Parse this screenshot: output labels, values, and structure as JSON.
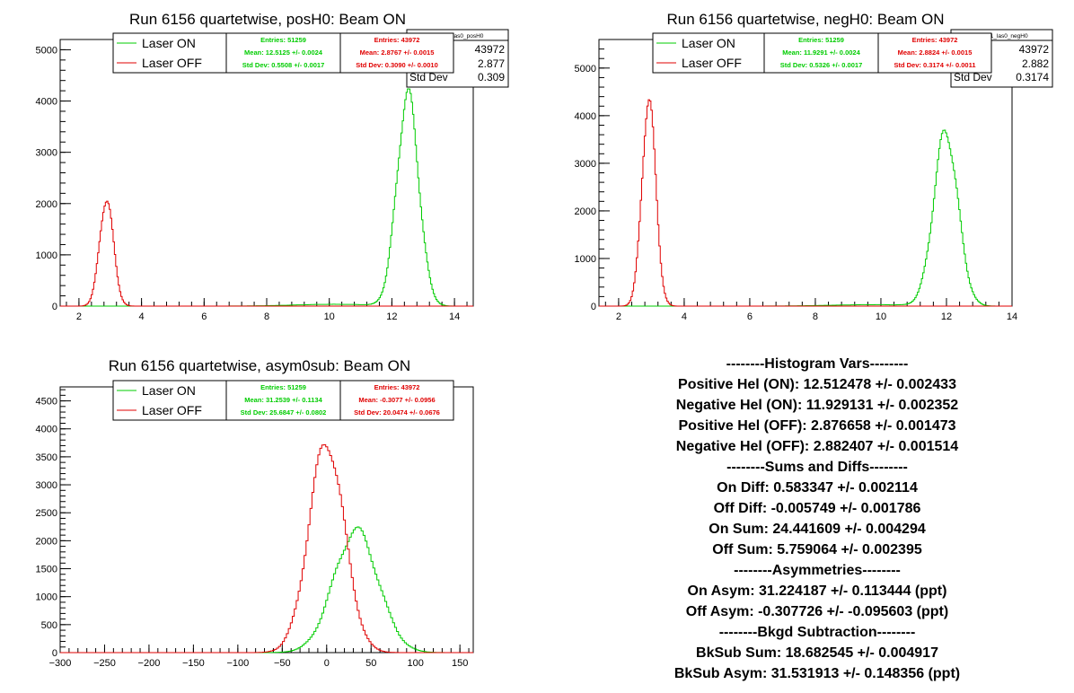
{
  "chart_data": [
    {
      "type": "histogram",
      "title": "Run 6156 quartetwise, posH0: Beam ON",
      "xlim": [
        1.4,
        14.6
      ],
      "ylim": [
        0,
        5200
      ],
      "xticks": [
        2,
        4,
        6,
        8,
        10,
        12,
        14
      ],
      "yticks": [
        0,
        1000,
        2000,
        3000,
        4000,
        5000
      ],
      "stats_box": {
        "name": "beam1_las0_posH0",
        "entries": "43972",
        "mean": "2.877",
        "std_dev": "0.309",
        "std_dev_label": "Std Dev"
      },
      "series": [
        {
          "name": "Laser ON",
          "color": "#00cc00",
          "mean": 12.51,
          "std": 0.35,
          "peak": 4120,
          "tail_amp": 35,
          "tail_mean": 10.2,
          "tail_std": 1.3,
          "entries": "Entries: 51259",
          "mean_text": "Mean: 12.5125 +/- 0.0024",
          "std_text": "Std Dev: 0.5508 +/- 0.0017"
        },
        {
          "name": "Laser OFF",
          "color": "#e00000",
          "mean": 2.88,
          "std": 0.22,
          "peak": 2100,
          "entries": "Entries: 43972",
          "mean_text": "Mean: 2.8767 +/- 0.0015",
          "std_text": "Std Dev: 0.3090 +/- 0.0010"
        }
      ]
    },
    {
      "type": "histogram",
      "title": "Run 6156 quartetwise, negH0: Beam ON",
      "xlim": [
        1.4,
        14.0
      ],
      "ylim": [
        0,
        5600
      ],
      "xticks": [
        2,
        4,
        6,
        8,
        10,
        12,
        14
      ],
      "yticks": [
        0,
        1000,
        2000,
        3000,
        4000,
        5000
      ],
      "stats_box": {
        "name": "beam1_las0_negH0",
        "entries": "43972",
        "mean": "2.882",
        "std_dev": "0.3174",
        "std_dev_label": "Std Dev"
      },
      "series": [
        {
          "name": "Laser ON",
          "color": "#00cc00",
          "mean": 11.98,
          "std": 0.37,
          "peak": 3660,
          "tail_amp": 30,
          "tail_mean": 9.8,
          "tail_std": 1.3,
          "entries": "Entries: 51259",
          "mean_text": "Mean: 11.9291 +/- 0.0024",
          "std_text": "Std Dev: 0.5326 +/- 0.0017"
        },
        {
          "name": "Laser OFF",
          "color": "#e00000",
          "mean": 2.92,
          "std": 0.21,
          "peak": 4350,
          "entries": "Entries: 43972",
          "mean_text": "Mean: 2.8824 +/- 0.0015",
          "std_text": "Std Dev: 0.3174 +/- 0.0011"
        }
      ]
    },
    {
      "type": "histogram",
      "title": "Run 6156 quartetwise, asym0sub: Beam ON",
      "xlim": [
        -300,
        165
      ],
      "ylim": [
        0,
        4750
      ],
      "xticks": [
        -300,
        -250,
        -200,
        -150,
        -100,
        -50,
        0,
        50,
        100,
        150
      ],
      "yticks": [
        0,
        500,
        1000,
        1500,
        2000,
        2500,
        3000,
        3500,
        4000,
        4500
      ],
      "series": [
        {
          "name": "Laser ON",
          "color": "#00cc00",
          "mean": 33,
          "std": 25,
          "peak": 2180,
          "entries": "Entries: 51259",
          "mean_text": "Mean: 31.2539 +/- 0.1134",
          "std_text": "Std Dev: 25.6847 +/- 0.0802"
        },
        {
          "name": "Laser OFF",
          "color": "#e00000",
          "mean": 0,
          "std": 20,
          "peak": 3760,
          "entries": "Entries: 43972",
          "mean_text": "Mean: -0.3077 +/- 0.0956",
          "std_text": "Std Dev: 20.0474 +/- 0.0676"
        }
      ]
    }
  ],
  "stats_text": [
    "--------Histogram Vars--------",
    "Positive Hel (ON): 12.512478 +/- 0.002433",
    "Negative Hel (ON): 11.929131 +/- 0.002352",
    "Positive Hel (OFF): 2.876658 +/- 0.001473",
    "Negative Hel (OFF): 2.882407 +/- 0.001514",
    "--------Sums and Diffs--------",
    "On Diff: 0.583347 +/- 0.002114",
    "Off Diff: -0.005749 +/- 0.001786",
    "On Sum: 24.441609 +/- 0.004294",
    "Off Sum: 5.759064 +/- 0.002395",
    "--------Asymmetries--------",
    "On Asym: 31.224187 +/- 0.113444 (ppt)",
    "Off Asym: -0.307726 +/- -0.095603 (ppt)",
    "--------Bkgd Subtraction--------",
    "BkSub Sum: 18.682545 +/- 0.004917",
    "BkSub Asym: 31.531913 +/- 0.148356 (ppt)"
  ]
}
